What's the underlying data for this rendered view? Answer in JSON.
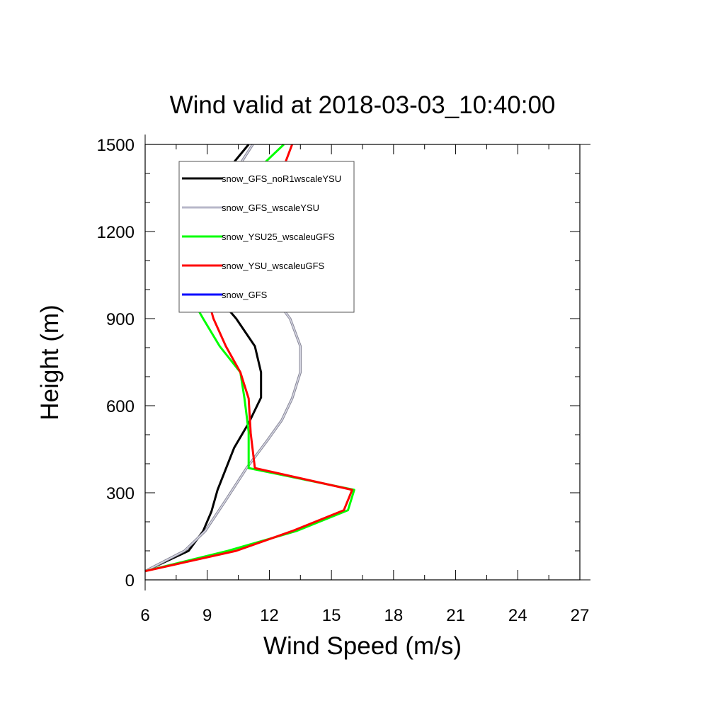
{
  "chart_data": {
    "type": "line",
    "title": "Wind valid at 2018-03-03_10:40:00",
    "xlabel": "Wind Speed (m/s)",
    "ylabel": "Height (m)",
    "xlim": [
      6,
      27
    ],
    "ylim": [
      0,
      1500
    ],
    "xticks": [
      6,
      9,
      12,
      15,
      18,
      21,
      24,
      27
    ],
    "yticks": [
      0,
      300,
      600,
      900,
      1200,
      1500
    ],
    "legend_position": "top-left",
    "grid": false,
    "series": [
      {
        "name": "snow_GFS_noR1wscaleYSU",
        "color": "#000000",
        "points": [
          [
            6.0,
            30
          ],
          [
            8.1,
            100
          ],
          [
            8.8,
            168
          ],
          [
            9.2,
            235
          ],
          [
            9.5,
            310
          ],
          [
            10.3,
            455
          ],
          [
            11.0,
            540
          ],
          [
            11.6,
            628
          ],
          [
            11.6,
            715
          ],
          [
            11.3,
            805
          ],
          [
            10.4,
            900
          ],
          [
            9.2,
            1000
          ],
          [
            8.6,
            1070
          ],
          [
            8.2,
            1180
          ],
          [
            8.8,
            1295
          ],
          [
            9.9,
            1405
          ],
          [
            11.0,
            1500
          ]
        ]
      },
      {
        "name": "snow_GFS_wscaleYSU",
        "color": "#b7b7c9",
        "points": [
          [
            6.0,
            30
          ],
          [
            7.9,
            100
          ],
          [
            8.9,
            168
          ],
          [
            9.9,
            275
          ],
          [
            10.9,
            385
          ],
          [
            11.9,
            480
          ],
          [
            12.6,
            550
          ],
          [
            13.1,
            625
          ],
          [
            13.5,
            715
          ],
          [
            13.5,
            805
          ],
          [
            13.0,
            900
          ],
          [
            12.0,
            995
          ],
          [
            10.5,
            1090
          ],
          [
            9.8,
            1180
          ],
          [
            9.8,
            1295
          ],
          [
            10.3,
            1400
          ],
          [
            11.2,
            1500
          ]
        ]
      },
      {
        "name": "snow_YSU25_wscaleuGFS",
        "color": "#00ff00",
        "points": [
          [
            6.0,
            30
          ],
          [
            10.0,
            100
          ],
          [
            13.3,
            168
          ],
          [
            15.8,
            240
          ],
          [
            16.1,
            310
          ],
          [
            11.0,
            385
          ],
          [
            11.0,
            510
          ],
          [
            10.8,
            625
          ],
          [
            10.6,
            715
          ],
          [
            9.6,
            805
          ],
          [
            8.8,
            900
          ],
          [
            8.0,
            1000
          ],
          [
            8.0,
            1085
          ],
          [
            8.6,
            1180
          ],
          [
            9.7,
            1295
          ],
          [
            11.3,
            1405
          ],
          [
            12.7,
            1500
          ]
        ]
      },
      {
        "name": "snow_YSU_wscaleuGFS",
        "color": "#ff0000",
        "points": [
          [
            6.0,
            30
          ],
          [
            10.4,
            100
          ],
          [
            13.1,
            168
          ],
          [
            15.6,
            240
          ],
          [
            16.0,
            310
          ],
          [
            11.3,
            385
          ],
          [
            11.1,
            505
          ],
          [
            11.0,
            625
          ],
          [
            10.6,
            715
          ],
          [
            9.9,
            805
          ],
          [
            9.3,
            900
          ],
          [
            8.9,
            1000
          ],
          [
            9.1,
            1085
          ],
          [
            10.0,
            1180
          ],
          [
            11.1,
            1290
          ],
          [
            12.6,
            1405
          ],
          [
            13.1,
            1500
          ]
        ]
      },
      {
        "name": "snow_GFS",
        "color": "#0000ff",
        "points": []
      }
    ]
  }
}
